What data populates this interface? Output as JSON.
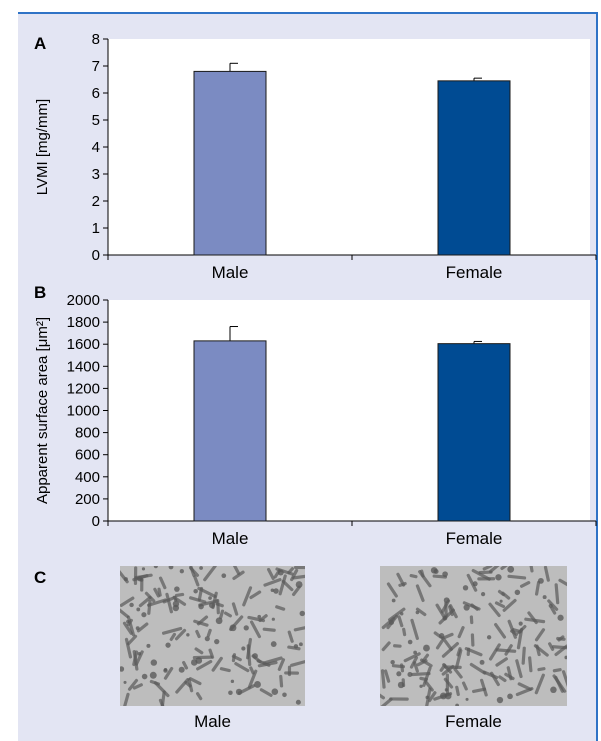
{
  "colors": {
    "male": "#7b8bc2",
    "female": "#004b93",
    "background": "#e3e5f3",
    "border": "#2f73c6"
  },
  "panels": {
    "a": {
      "letter": "A"
    },
    "b": {
      "letter": "B"
    },
    "c": {
      "letter": "C",
      "images": [
        {
          "label": "Male",
          "icon": "cardiomyocyte-micrograph-image"
        },
        {
          "label": "Female",
          "icon": "cardiomyocyte-micrograph-image"
        }
      ]
    }
  },
  "chart_data": [
    {
      "type": "bar",
      "panel": "A",
      "categories": [
        "Male",
        "Female"
      ],
      "values": [
        6.8,
        6.45
      ],
      "errors": [
        0.3,
        0.1
      ],
      "ylabel": "LVMI [mg/mm]",
      "ylim": [
        0,
        8
      ],
      "yticks": [
        0,
        1,
        2,
        3,
        4,
        5,
        6,
        7,
        8
      ],
      "colors": [
        "#7b8bc2",
        "#004b93"
      ],
      "grid": false
    },
    {
      "type": "bar",
      "panel": "B",
      "categories": [
        "Male",
        "Female"
      ],
      "values": [
        1630,
        1605
      ],
      "errors": [
        130,
        20
      ],
      "ylabel": "Apparent surface area [μm²]",
      "ylim": [
        0,
        2000
      ],
      "yticks": [
        0,
        200,
        400,
        600,
        800,
        1000,
        1200,
        1400,
        1600,
        1800,
        2000
      ],
      "colors": [
        "#7b8bc2",
        "#004b93"
      ],
      "grid": false
    }
  ]
}
